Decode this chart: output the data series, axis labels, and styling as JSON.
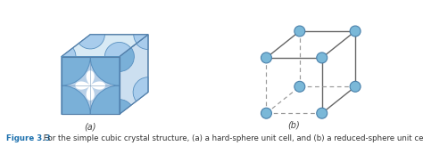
{
  "fig_bg": "#ffffff",
  "cube_front_color": "#b8d0e8",
  "cube_right_color": "#ccdff0",
  "cube_top_color": "#d8eaf5",
  "cube_edge_color": "#5580aa",
  "sphere_dark": "#5890c0",
  "sphere_mid": "#7ab0d8",
  "sphere_light": "#a8ccec",
  "gap_color": "#ffffff",
  "label_color": "#444444",
  "label_a": "(a)",
  "label_b": "(b)",
  "node_fill": "#7ab8d8",
  "node_edge": "#4a80aa",
  "wire_color": "#666666",
  "dash_color": "#999999",
  "caption_bold": "Figure 3.3",
  "caption_rest": " For the simple cubic crystal structure, (a) a hard-sphere unit cell, and (b) a reduced-sphere unit cell.",
  "caption_blue": "#1a6fad",
  "caption_dark": "#333333"
}
